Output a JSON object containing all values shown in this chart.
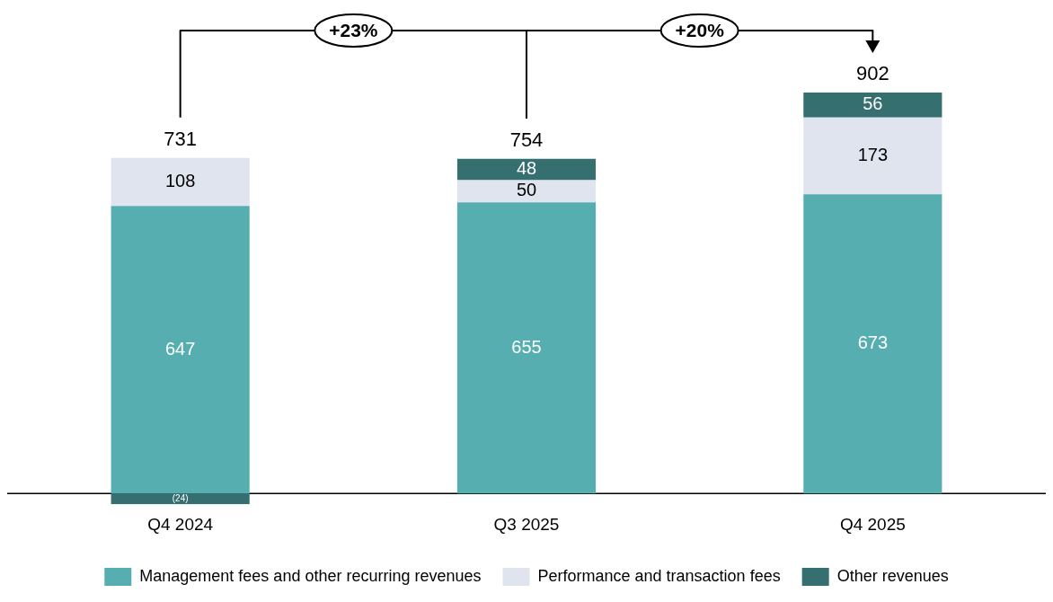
{
  "chart_data": {
    "type": "bar",
    "stacked": true,
    "categories": [
      "Q4 2024",
      "Q3 2025",
      "Q4 2025"
    ],
    "series": [
      {
        "name": "Management fees and other recurring revenues",
        "color": "#56aeb0",
        "values": [
          647,
          655,
          673
        ]
      },
      {
        "name": "Performance and transaction fees",
        "color": "#dfe4ef",
        "values": [
          108,
          50,
          173
        ]
      },
      {
        "name": "Other revenues",
        "color": "#356f70",
        "values": [
          -24,
          48,
          56
        ],
        "value_labels": [
          "(24)",
          "48",
          "56"
        ]
      }
    ],
    "data_labels": true,
    "totals": [
      "731",
      "754",
      "902"
    ],
    "annotations": [
      "+23%",
      "+20%"
    ],
    "legend": "bottom",
    "grid": false
  }
}
